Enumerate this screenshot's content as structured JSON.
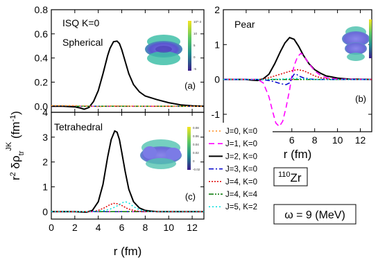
{
  "figure": {
    "ylabel_main": "r",
    "ylabel_sup": "2",
    "ylabel_delta": " δρ",
    "ylabel_sub": "tr",
    "ylabel_supJK": "JK",
    "ylabel_unit": " (fm",
    "ylabel_unit_sup": "-1",
    "ylabel_unit_close": ")",
    "nucleus_mass": "110",
    "nucleus_symbol": "Zr",
    "omega_label": "ω = 9 (MeV)",
    "colors": {
      "J0K0": "#ff8c1a",
      "J1K0": "#ff00ff",
      "J2K0": "#000000",
      "J3K0": "#0000cc",
      "J4K0": "#dd0000",
      "J4K4": "#007700",
      "J5K2": "#00dddd"
    }
  },
  "legend": [
    {
      "key": "J0K0",
      "label": "J=0, K=0"
    },
    {
      "key": "J1K0",
      "label": "J=1, K=0"
    },
    {
      "key": "J2K0",
      "label": "J=2, K=0"
    },
    {
      "key": "J3K0",
      "label": "J=3, K=0"
    },
    {
      "key": "J4K0",
      "label": "J=4, K=0"
    },
    {
      "key": "J4K4",
      "label": "J=4, K=4"
    },
    {
      "key": "J5K2",
      "label": "J=5, K=2"
    }
  ],
  "chart_data": [
    {
      "id": "a",
      "type": "line",
      "title": "",
      "annotations": [
        "ISQ  K=0",
        "Spherical",
        "(a)"
      ],
      "xlabel": "",
      "ylabel": "",
      "xlim": [
        0,
        13
      ],
      "ylim": [
        -0.05,
        0.8
      ],
      "yticks": [
        0.0,
        0.2,
        0.4,
        0.6,
        0.8
      ],
      "ytick_labels": [
        "0.0",
        "0.2",
        "0.4",
        "0.6",
        "0.8"
      ],
      "xticks": [
        0,
        2,
        4,
        6,
        8,
        10,
        12
      ],
      "xtick_labels": [],
      "colorbar_ticks": [
        "10^-3",
        "10",
        "5",
        "0",
        "-5"
      ],
      "series": [
        {
          "key": "J2K0",
          "x": [
            0,
            1,
            2,
            2.5,
            2.8,
            3.2,
            3.6,
            4.0,
            4.4,
            4.8,
            5.0,
            5.3,
            5.6,
            5.8,
            6.0,
            6.3,
            6.6,
            7.0,
            7.5,
            8.0,
            8.5,
            9.0,
            10,
            11,
            12,
            13
          ],
          "y": [
            0,
            0,
            -0.005,
            -0.015,
            -0.025,
            -0.01,
            0.04,
            0.13,
            0.27,
            0.42,
            0.48,
            0.535,
            0.54,
            0.52,
            0.47,
            0.37,
            0.27,
            0.18,
            0.12,
            0.085,
            0.07,
            0.055,
            0.03,
            0.012,
            0.004,
            0.0
          ]
        },
        {
          "key": "J0K0",
          "x": [
            0,
            2,
            3,
            4,
            5,
            6,
            7,
            8,
            13
          ],
          "y": [
            0.005,
            0.005,
            0.002,
            -0.003,
            0.003,
            0.002,
            0.001,
            0.0,
            0.0
          ]
        },
        {
          "key": "J1K0",
          "x": [
            0,
            13
          ],
          "y": [
            0,
            0
          ]
        },
        {
          "key": "J3K0",
          "x": [
            0,
            13
          ],
          "y": [
            0,
            0
          ]
        },
        {
          "key": "J4K0",
          "x": [
            0,
            13
          ],
          "y": [
            0,
            0
          ]
        },
        {
          "key": "J4K4",
          "x": [
            0,
            13
          ],
          "y": [
            0,
            0
          ]
        },
        {
          "key": "J5K2",
          "x": [
            0,
            13
          ],
          "y": [
            0,
            0
          ]
        }
      ]
    },
    {
      "id": "b",
      "type": "line",
      "title": "",
      "annotations": [
        "Pear",
        "(b)"
      ],
      "xlabel": "r (fm)",
      "ylabel": "",
      "xlim": [
        0,
        13
      ],
      "ylim": [
        -1.5,
        2
      ],
      "yticks": [
        -1,
        0,
        1,
        2
      ],
      "ytick_labels": [
        "-1",
        "0",
        "1",
        "2"
      ],
      "xticks": [
        0,
        2,
        4,
        6,
        8,
        10,
        12
      ],
      "xtick_labels": [
        "0",
        "2",
        "4",
        "6",
        "8",
        "10",
        "12"
      ],
      "series": [
        {
          "key": "J2K0",
          "x": [
            0,
            2,
            2.5,
            3,
            3.5,
            4.0,
            4.5,
            5.0,
            5.4,
            5.8,
            6.2,
            6.6,
            7.0,
            7.5,
            8.0,
            8.5,
            9.0,
            10,
            11,
            13
          ],
          "y": [
            0,
            0,
            -0.02,
            -0.03,
            0.02,
            0.15,
            0.45,
            0.8,
            1.05,
            1.2,
            1.15,
            0.95,
            0.7,
            0.45,
            0.28,
            0.18,
            0.1,
            0.04,
            0.01,
            0.0
          ]
        },
        {
          "key": "J1K0",
          "x": [
            0,
            3,
            3.5,
            4.0,
            4.3,
            4.6,
            4.9,
            5.2,
            5.5,
            5.8,
            6.0,
            6.2,
            6.5,
            6.8,
            7.0,
            7.5,
            8.0,
            8.5,
            9.0,
            10,
            13
          ],
          "y": [
            0,
            0,
            -0.1,
            -0.5,
            -0.9,
            -1.25,
            -1.35,
            -1.2,
            -0.8,
            -0.3,
            0.1,
            0.4,
            0.65,
            0.75,
            0.7,
            0.45,
            0.25,
            0.12,
            0.05,
            0.01,
            0.0
          ]
        },
        {
          "key": "J4K0",
          "x": [
            0,
            3,
            3.5,
            4.0,
            4.5,
            5.0,
            5.5,
            6.0,
            6.5,
            7.0,
            7.5,
            8.0,
            8.5,
            9.0,
            10,
            13
          ],
          "y": [
            0,
            0,
            0.01,
            0.05,
            0.1,
            0.15,
            0.2,
            0.25,
            0.28,
            0.25,
            0.18,
            0.1,
            0.05,
            0.02,
            0.0,
            0.0
          ]
        },
        {
          "key": "J3K0",
          "x": [
            0,
            3,
            3.5,
            4.0,
            4.5,
            5.0,
            5.5,
            5.8,
            6.0,
            6.2,
            6.4,
            6.6,
            7.0,
            7.5,
            8.0,
            9.0,
            13
          ],
          "y": [
            0,
            0,
            -0.01,
            -0.03,
            -0.07,
            -0.12,
            -0.15,
            -0.1,
            0.05,
            0.15,
            0.15,
            0.1,
            0.05,
            0.02,
            0.0,
            0.0,
            0.0
          ]
        },
        {
          "key": "J5K2",
          "x": [
            0,
            4,
            5,
            5.5,
            6.0,
            6.5,
            7.0,
            8.0,
            13
          ],
          "y": [
            0,
            0,
            0.01,
            0.02,
            0.03,
            0.03,
            0.02,
            0.0,
            0.0
          ]
        },
        {
          "key": "J0K0",
          "x": [
            0,
            13
          ],
          "y": [
            0,
            0
          ]
        },
        {
          "key": "J4K4",
          "x": [
            0,
            13
          ],
          "y": [
            0,
            0
          ]
        }
      ]
    },
    {
      "id": "c",
      "type": "line",
      "title": "",
      "annotations": [
        "Tetrahedral",
        "(c)"
      ],
      "xlabel": "r (fm)",
      "ylabel": "",
      "xlim": [
        0,
        13
      ],
      "ylim": [
        -0.3,
        4
      ],
      "yticks": [
        0,
        1,
        2,
        3,
        4
      ],
      "ytick_labels": [
        "0",
        "1",
        "2",
        "3",
        "4"
      ],
      "xticks": [
        0,
        2,
        4,
        6,
        8,
        10,
        12
      ],
      "xtick_labels": [
        "0",
        "2",
        "4",
        "6",
        "8",
        "10",
        "12"
      ],
      "colorbar_ticks": [
        "0.08",
        "0.06",
        "0.04",
        "0.02",
        "0",
        "-0.02"
      ],
      "series": [
        {
          "key": "J2K0",
          "x": [
            0,
            2,
            2.5,
            3,
            3.5,
            4.0,
            4.4,
            4.8,
            5.1,
            5.4,
            5.6,
            5.8,
            6.0,
            6.3,
            6.6,
            7.0,
            7.5,
            8.0,
            8.5,
            9,
            10,
            13
          ],
          "y": [
            0,
            0,
            -0.01,
            -0.02,
            0.05,
            0.4,
            1.1,
            2.2,
            2.9,
            3.25,
            3.2,
            2.9,
            2.4,
            1.6,
            0.9,
            0.4,
            0.15,
            0.05,
            0.02,
            0.0,
            0.0,
            0.0
          ]
        },
        {
          "key": "J4K0",
          "x": [
            0,
            3,
            3.5,
            4.0,
            4.5,
            5.0,
            5.3,
            5.6,
            6.0,
            6.5,
            7.0,
            7.5,
            8.0,
            13
          ],
          "y": [
            0,
            0,
            0.01,
            0.05,
            0.15,
            0.28,
            0.33,
            0.32,
            0.25,
            0.12,
            0.05,
            0.01,
            0.0,
            0.0
          ]
        },
        {
          "key": "J5K2",
          "x": [
            0,
            3,
            4.0,
            4.5,
            5.0,
            5.5,
            6.0,
            6.3,
            6.6,
            7.0,
            7.5,
            8.0,
            8.5,
            13
          ],
          "y": [
            0,
            0,
            0.02,
            0.05,
            0.1,
            0.2,
            0.35,
            0.4,
            0.35,
            0.2,
            0.08,
            0.02,
            0.0,
            0.0
          ]
        },
        {
          "key": "J0K0",
          "x": [
            0,
            13
          ],
          "y": [
            0,
            0
          ]
        },
        {
          "key": "J1K0",
          "x": [
            0,
            13
          ],
          "y": [
            0,
            0
          ]
        },
        {
          "key": "J3K0",
          "x": [
            0,
            13
          ],
          "y": [
            0,
            0
          ]
        },
        {
          "key": "J4K4",
          "x": [
            0,
            13
          ],
          "y": [
            0,
            0
          ]
        }
      ]
    }
  ]
}
